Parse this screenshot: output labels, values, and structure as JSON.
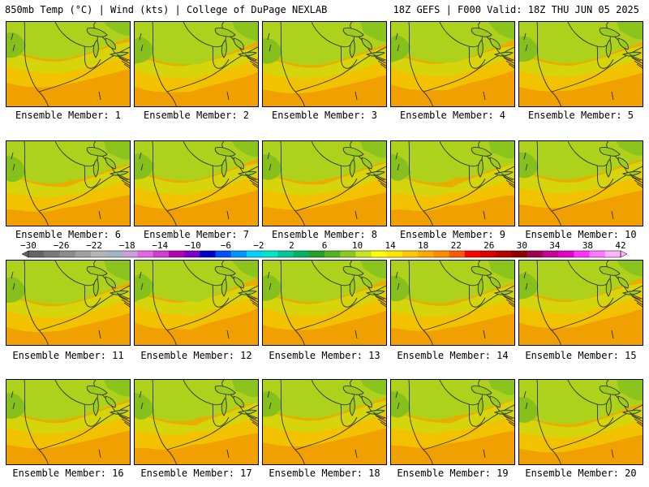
{
  "header": {
    "left": "850mb Temp (°C) | Wind (kts) | College of DuPage NEXLAB",
    "right": "18Z GEFS | F000 Valid: 18Z THU JUN 05 2025"
  },
  "members": [
    {
      "label": "Ensemble Member: 1"
    },
    {
      "label": "Ensemble Member: 2"
    },
    {
      "label": "Ensemble Member: 3"
    },
    {
      "label": "Ensemble Member: 4"
    },
    {
      "label": "Ensemble Member: 5"
    },
    {
      "label": "Ensemble Member: 6"
    },
    {
      "label": "Ensemble Member: 7"
    },
    {
      "label": "Ensemble Member: 8"
    },
    {
      "label": "Ensemble Member: 9"
    },
    {
      "label": "Ensemble Member: 10"
    },
    {
      "label": "Ensemble Member: 11"
    },
    {
      "label": "Ensemble Member: 12"
    },
    {
      "label": "Ensemble Member: 13"
    },
    {
      "label": "Ensemble Member: 14"
    },
    {
      "label": "Ensemble Member: 15"
    },
    {
      "label": "Ensemble Member: 16"
    },
    {
      "label": "Ensemble Member: 17"
    },
    {
      "label": "Ensemble Member: 18"
    },
    {
      "label": "Ensemble Member: 19"
    },
    {
      "label": "Ensemble Member: 20"
    }
  ],
  "colorbar": {
    "labels": [
      "−30",
      "−26",
      "−22",
      "−18",
      "−14",
      "−10",
      "−6",
      "−2",
      "2",
      "6",
      "10",
      "14",
      "18",
      "22",
      "26",
      "30",
      "34",
      "38",
      "42"
    ],
    "colors": [
      "#646464",
      "#787878",
      "#8c8c8c",
      "#a0a0a0",
      "#b4b4b4",
      "#a0b4c8",
      "#c8a0dc",
      "#e664e6",
      "#d23cd2",
      "#b400b4",
      "#7800c8",
      "#0000c8",
      "#0050ff",
      "#0096ff",
      "#00d2ff",
      "#00e6c8",
      "#00c896",
      "#00b464",
      "#28a028",
      "#50b41e",
      "#8cc81e",
      "#c8e61e",
      "#ffff00",
      "#ffe600",
      "#ffc800",
      "#ffaa00",
      "#ff8c00",
      "#ff5a00",
      "#ff0000",
      "#dc0000",
      "#b40000",
      "#8c0000",
      "#a00050",
      "#c8009a",
      "#e600c8",
      "#ff32ff",
      "#ff78ff",
      "#ffb4ff"
    ]
  }
}
